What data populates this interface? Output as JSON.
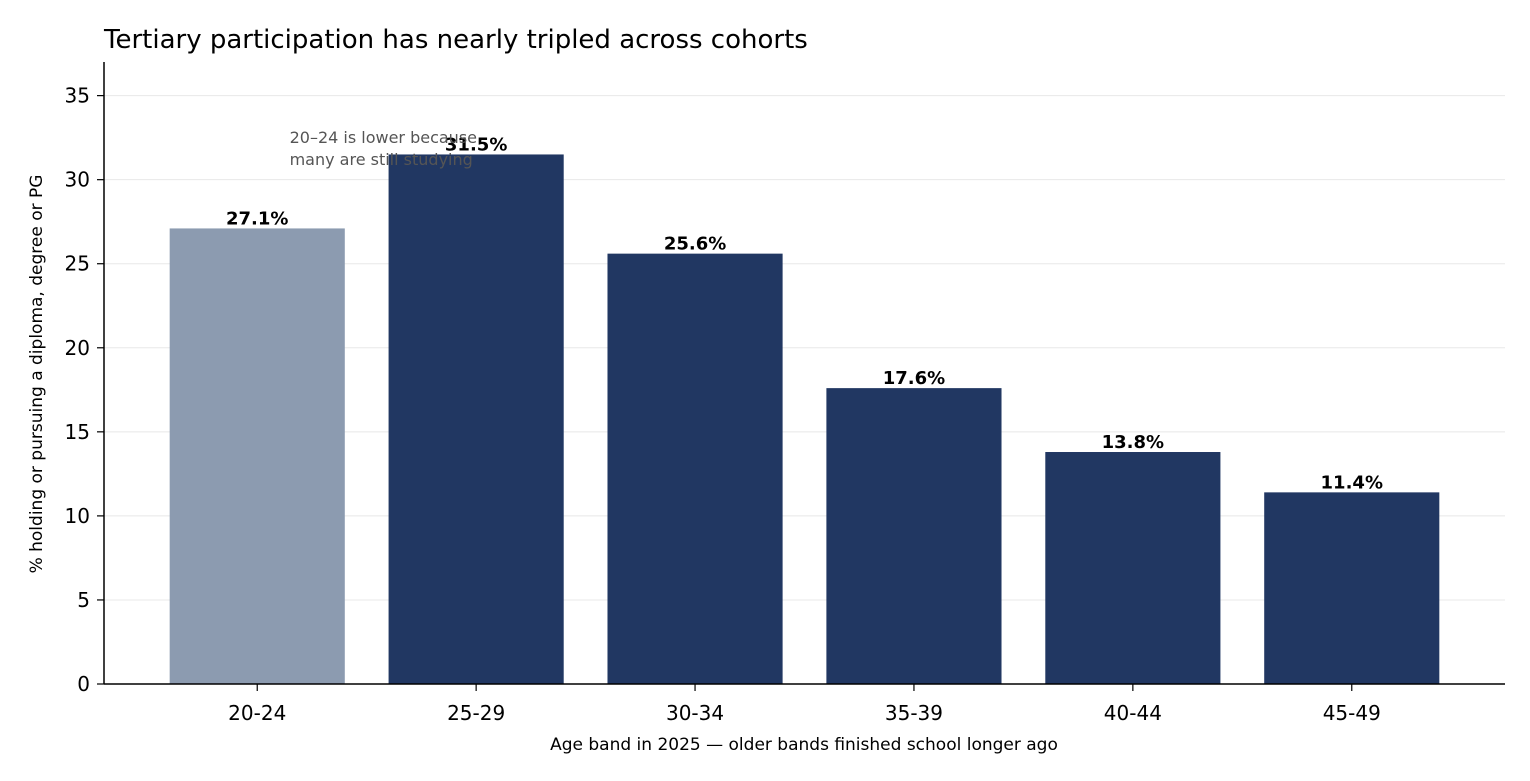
{
  "chart_data": {
    "type": "bar",
    "title": "Tertiary participation has nearly tripled across cohorts",
    "xlabel": "Age band in 2025 — older bands finished school longer ago",
    "ylabel": "% holding or pursuing a diploma, degree or PG",
    "categories": [
      "20-24",
      "25-29",
      "30-34",
      "35-39",
      "40-44",
      "45-49"
    ],
    "values": [
      27.1,
      31.5,
      25.6,
      17.6,
      13.8,
      11.4
    ],
    "value_labels": [
      "27.1%",
      "31.5%",
      "25.6%",
      "17.6%",
      "13.8%",
      "11.4%"
    ],
    "ylim": [
      0,
      37
    ],
    "yticks": [
      0,
      5,
      10,
      15,
      20,
      25,
      30,
      35
    ],
    "grid": "horizontal",
    "colors": {
      "highlight": "#8c9bb0",
      "bar": "#213762",
      "grid": "#e8e8e8",
      "axis": "#000000",
      "annotation": "#555555"
    },
    "highlight_index": 0,
    "annotation": {
      "lines": [
        "20–24 is lower because",
        "many are still studying"
      ],
      "x_category": "25-29",
      "y_value": 31
    }
  }
}
